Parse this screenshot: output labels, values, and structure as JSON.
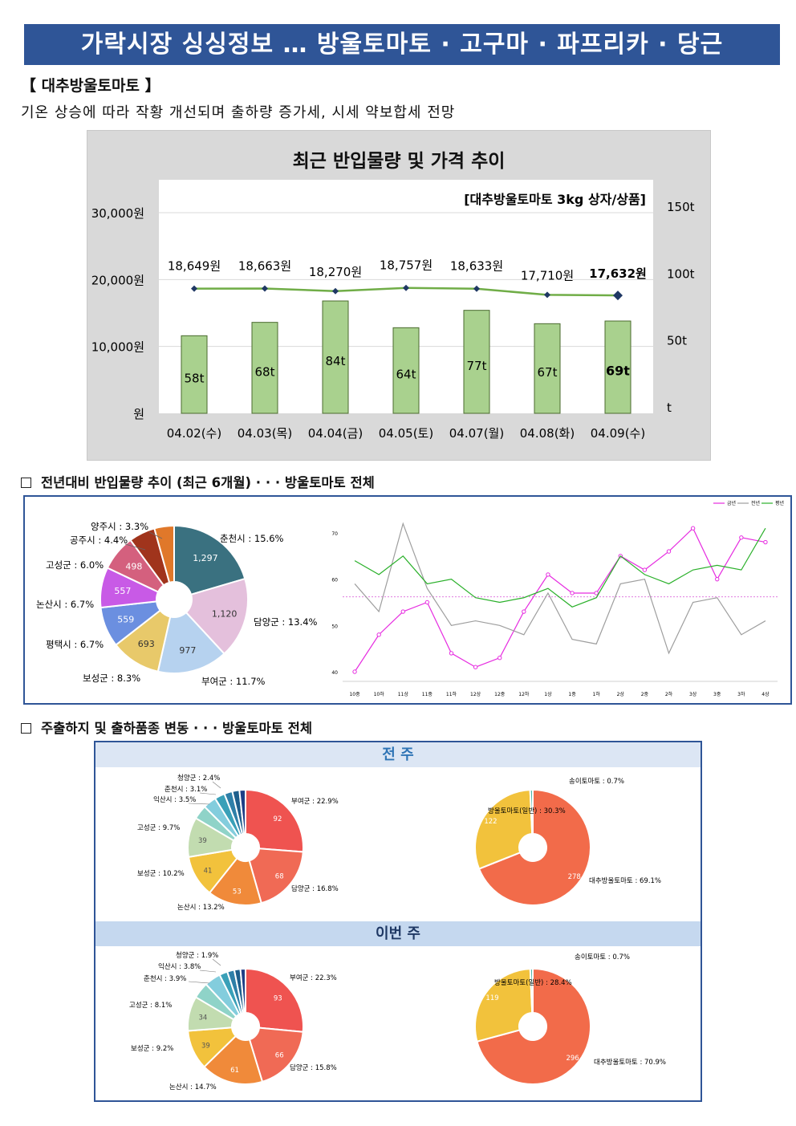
{
  "banner": "가락시장 싱싱정보 … 방울토마토 · 고구마 · 파프리카 · 당근",
  "subhead": "【 대추방울토마토 】",
  "summary": "기온 상승에 따라 작황 개선되며 출하량 증가세, 시세 약보합세 전망",
  "chart1": {
    "title": "최근 반입물량 및 가격 추이",
    "note": "[대추방울토마토 3kg 상자/상품]",
    "left_ticks": [
      {
        "v": 30000,
        "label": "30,000원"
      },
      {
        "v": 20000,
        "label": "20,000원"
      },
      {
        "v": 10000,
        "label": "10,000원"
      },
      {
        "v": 0,
        "label": "원"
      }
    ],
    "right_ticks": [
      {
        "v": 150,
        "label": "150t"
      },
      {
        "v": 100,
        "label": "100t"
      },
      {
        "v": 50,
        "label": "50t"
      },
      {
        "v": 0,
        "label": "t"
      }
    ],
    "dates": [
      "04.02(수)",
      "04.03(목)",
      "04.04(금)",
      "04.05(토)",
      "04.07(월)",
      "04.08(화)",
      "04.09(수)"
    ],
    "volumes": [
      58,
      68,
      84,
      64,
      77,
      67,
      69
    ],
    "volume_labels": [
      "58t",
      "68t",
      "84t",
      "64t",
      "77t",
      "67t",
      "69t"
    ],
    "prices": [
      18649,
      18663,
      18270,
      18757,
      18633,
      17710,
      17632
    ],
    "price_labels": [
      "18,649원",
      "18,663원",
      "18,270원",
      "18,757원",
      "18,633원",
      "17,710원",
      "17,632원"
    ],
    "colors": {
      "bar": "#a9d18e",
      "line": "#70ad47",
      "marker": "#1f3864"
    }
  },
  "section2_title": "전년대비 반입물량 추이 (최근 6개월) · · · 방울토마토 전체",
  "pie_regions": {
    "labels": [
      "춘천시 : 15.6%",
      "담양군 : 13.4%",
      "부여군 : 11.7%",
      "보성군 : 8.3%",
      "평택시 : 6.7%",
      "논산시 : 6.7%",
      "고성군 : 6.0%",
      "공주시 : 4.4%",
      "양주시 : 3.3%"
    ],
    "values": [
      1297,
      1120,
      977,
      693,
      559,
      557,
      498,
      366,
      274
    ],
    "value_labels": [
      "1,297",
      "1,120",
      "977",
      "693",
      "559",
      "557",
      "498",
      "",
      ""
    ],
    "colors": [
      "#3a7180",
      "#e4c0dc",
      "#b6d2ef",
      "#e8c96a",
      "#6b8fe0",
      "#c85ae6",
      "#d4607e",
      "#a0341c",
      "#e0782a",
      "#4fb5a8"
    ]
  },
  "trend": {
    "legend": [
      "금년",
      "전년",
      "평년"
    ],
    "x_labels": [
      "10중",
      "10하",
      "11상",
      "11중",
      "11하",
      "12상",
      "12중",
      "12하",
      "1상",
      "1중",
      "1하",
      "2상",
      "2중",
      "2하",
      "3상",
      "3중",
      "3하",
      "4상"
    ],
    "y_ticks": [
      70,
      60,
      50,
      40
    ],
    "series": [
      {
        "name": "금년",
        "color": "#e62ce0",
        "values": [
          40,
          48,
          53,
          55,
          44,
          41,
          43,
          53,
          61,
          57,
          57,
          65,
          62,
          66,
          71,
          60,
          69,
          68
        ]
      },
      {
        "name": "전년",
        "color": "#9e9e9e",
        "values": [
          59,
          53,
          72,
          58,
          50,
          51,
          50,
          48,
          57,
          47,
          46,
          59,
          60,
          44,
          55,
          56,
          48,
          51
        ]
      },
      {
        "name": "평년",
        "color": "#2ab02a",
        "values": [
          64,
          61,
          65,
          59,
          60,
          56,
          55,
          56,
          58,
          54,
          56,
          65,
          61,
          59,
          62,
          63,
          62,
          71
        ]
      }
    ],
    "avg_line": 56.2,
    "avg_color": "#e07be0"
  },
  "section3_title": "주출하지 및 출하품종 변동 · · · 방울토마토 전체",
  "prev_week": {
    "heading": "전 주",
    "regions": {
      "labels": [
        "부여군 : 22.9%",
        "담양군 : 16.8%",
        "논산시 : 13.2%",
        "보성군 : 10.2%",
        "고성군 : 9.7%",
        "익산시 : 3.5%",
        "춘천시 : 3.1%",
        "청양군 : 2.4%",
        "",
        "",
        ""
      ],
      "values": [
        92,
        68,
        53,
        41,
        39,
        14,
        13,
        10,
        8,
        7,
        6
      ],
      "value_labels": [
        "92",
        "68",
        "53",
        "41",
        "39",
        "",
        "",
        "",
        "",
        "",
        ""
      ]
    },
    "varieties": {
      "labels": [
        "대추방울토마토 : 69.1%",
        "방울토마토(일반) : 30.3%",
        "송이토마토 : 0.7%"
      ],
      "values": [
        278,
        122,
        3
      ],
      "value_labels": [
        "278",
        "122",
        ""
      ]
    }
  },
  "this_week": {
    "heading": "이번 주",
    "regions": {
      "labels": [
        "부여군 : 22.3%",
        "담양군 : 15.8%",
        "논산시 : 14.7%",
        "보성군 : 9.2%",
        "고성군 : 8.1%",
        "춘천시 : 3.9%",
        "익산시 : 3.8%",
        "청양군 : 1.9%",
        "",
        "",
        ""
      ],
      "values": [
        93,
        66,
        61,
        39,
        34,
        16,
        16,
        8,
        7,
        6,
        5
      ],
      "value_labels": [
        "93",
        "66",
        "61",
        "39",
        "34",
        "",
        "",
        "",
        "",
        "",
        ""
      ]
    },
    "varieties": {
      "labels": [
        "대추방울토마토 : 70.9%",
        "방울토마토(일반) : 28.4%",
        "송이토마토 : 0.7%"
      ],
      "values": [
        296,
        119,
        3
      ],
      "value_labels": [
        "296",
        "119",
        ""
      ]
    }
  },
  "region_colors": [
    "#ef5350",
    "#f06a55",
    "#f08a3a",
    "#f2c23c",
    "#c2dcb0",
    "#8fd3c8",
    "#83cddd",
    "#3aa0b8",
    "#2e7fa8",
    "#1e5f8c",
    "#1f3e86"
  ],
  "variety_colors": [
    "#f26b4a",
    "#f2c23c",
    "#4fb5a8"
  ]
}
